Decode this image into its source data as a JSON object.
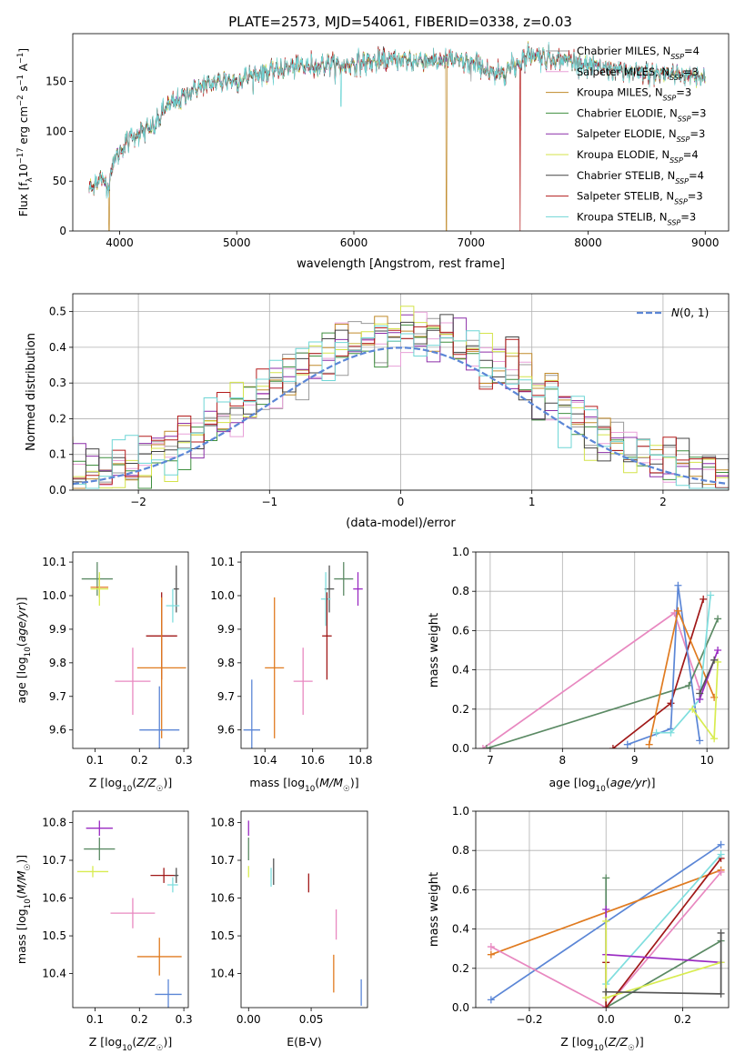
{
  "title": "PLATE=2573, MJD=54061, FIBERID=0338, z=0.03",
  "colors": {
    "Chabrier MILES": "#999999",
    "Salpeter MILES": "#e8a0d8",
    "Kroupa MILES": "#c08a2a",
    "Chabrier ELODIE": "#3f8f3f",
    "Salpeter ELODIE": "#8c2fa8",
    "Kroupa ELODIE": "#d4e34a",
    "Chabrier STELIB": "#444444",
    "Salpeter STELIB": "#b31b1b",
    "Kroupa STELIB": "#6fd6d6",
    "ssp_blue": "#5b86d6",
    "ssp_orange": "#e07b20",
    "ssp_green": "#5b8a64",
    "ssp_purple": "#9a2bc2",
    "ssp_pink": "#e888c0",
    "ssp_yellow": "#d8ec50",
    "ssp_red": "#a01818",
    "ssp_cyan": "#7fdede",
    "ssp_darkgray": "#555555",
    "normal": "#5b86d6"
  },
  "chart_data": [
    {
      "id": "spectrum",
      "type": "line",
      "xlabel": "wavelength [Angstrom, rest frame]",
      "ylabel": "Flux [f_λ10^-17 erg cm^-2 s^-1 A^-1]",
      "xlim": [
        3600,
        9200
      ],
      "ylim": [
        0,
        198
      ],
      "xticks": [
        4000,
        5000,
        6000,
        7000,
        8000,
        9000
      ],
      "yticks": [
        0,
        50,
        100,
        150
      ],
      "legend_position": "upper-right",
      "legend": [
        {
          "label": "Chabrier MILES",
          "n": "4",
          "color_key": "Chabrier MILES"
        },
        {
          "label": "Salpeter MILES",
          "n": "3",
          "color_key": "Salpeter MILES"
        },
        {
          "label": "Kroupa MILES",
          "n": "3",
          "color_key": "Kroupa MILES"
        },
        {
          "label": "Chabrier ELODIE",
          "n": "3",
          "color_key": "Chabrier ELODIE"
        },
        {
          "label": "Salpeter ELODIE",
          "n": "3",
          "color_key": "Salpeter ELODIE"
        },
        {
          "label": "Kroupa ELODIE",
          "n": "4",
          "color_key": "Kroupa ELODIE"
        },
        {
          "label": "Chabrier STELIB",
          "n": "4",
          "color_key": "Chabrier STELIB"
        },
        {
          "label": "Salpeter STELIB",
          "n": "3",
          "color_key": "Salpeter STELIB"
        },
        {
          "label": "Kroupa STELIB",
          "n": "3",
          "color_key": "Kroupa STELIB"
        }
      ],
      "continuum": [
        [
          3740,
          40
        ],
        [
          3800,
          50
        ],
        [
          3850,
          52
        ],
        [
          3900,
          45
        ],
        [
          3950,
          70
        ],
        [
          4000,
          80
        ],
        [
          4100,
          95
        ],
        [
          4200,
          100
        ],
        [
          4300,
          105
        ],
        [
          4400,
          125
        ],
        [
          4500,
          130
        ],
        [
          4600,
          140
        ],
        [
          4700,
          145
        ],
        [
          4800,
          148
        ],
        [
          4900,
          152
        ],
        [
          5000,
          150
        ],
        [
          5100,
          155
        ],
        [
          5200,
          158
        ],
        [
          5300,
          160
        ],
        [
          5400,
          163
        ],
        [
          5500,
          165
        ],
        [
          5600,
          165
        ],
        [
          5700,
          166
        ],
        [
          5800,
          168
        ],
        [
          5900,
          165
        ],
        [
          6000,
          168
        ],
        [
          6200,
          170
        ],
        [
          6400,
          172
        ],
        [
          6500,
          170
        ],
        [
          6600,
          172
        ],
        [
          6700,
          170
        ],
        [
          6800,
          172
        ],
        [
          6900,
          170
        ],
        [
          7000,
          168
        ],
        [
          7100,
          165
        ],
        [
          7200,
          155
        ],
        [
          7300,
          162
        ],
        [
          7400,
          168
        ],
        [
          7500,
          178
        ],
        [
          7600,
          175
        ],
        [
          7700,
          173
        ],
        [
          7800,
          172
        ],
        [
          7900,
          170
        ],
        [
          8000,
          165
        ],
        [
          8200,
          162
        ],
        [
          8400,
          158
        ],
        [
          8600,
          158
        ],
        [
          8800,
          157
        ],
        [
          9000,
          155
        ]
      ],
      "dips": [
        {
          "series": "Kroupa MILES",
          "x": 3910,
          "y": 0
        },
        {
          "series": "Kroupa MILES",
          "x": 6790,
          "y": 0
        },
        {
          "series": "Salpeter STELIB",
          "x": 7420,
          "y": 0
        },
        {
          "series": "Kroupa STELIB",
          "x": 5890,
          "y": 125
        },
        {
          "series": "Chabrier MILES",
          "x": 7000,
          "y": 150
        }
      ]
    },
    {
      "id": "residuals",
      "type": "histogram",
      "xlabel": "(data-model)/error",
      "ylabel": "Normed distribution",
      "xlim": [
        -2.5,
        2.5
      ],
      "ylim": [
        0,
        0.55
      ],
      "xticks": [
        -2,
        -1,
        0,
        1,
        2
      ],
      "yticks": [
        0.0,
        0.1,
        0.2,
        0.3,
        0.4,
        0.5
      ],
      "legend": [
        {
          "label": "N(0,1)",
          "color_key": "normal"
        }
      ],
      "bin_width": 0.1,
      "series": [
        "Chabrier MILES",
        "Salpeter MILES",
        "Kroupa MILES",
        "Chabrier ELODIE",
        "Salpeter ELODIE",
        "Kroupa ELODIE",
        "Chabrier STELIB",
        "Salpeter STELIB",
        "Kroupa STELIB"
      ]
    },
    {
      "id": "age_vs_Z",
      "type": "errorbar",
      "xlabel": "Z [log10(Z/Z☉)]",
      "ylabel": "age  [log10(age/yr)]",
      "xlim": [
        0.05,
        0.31
      ],
      "ylim": [
        9.545,
        10.13
      ],
      "xticks": [
        0.1,
        0.2,
        0.3
      ],
      "yticks": [
        9.6,
        9.7,
        9.8,
        9.9,
        10.0,
        10.1
      ],
      "points": [
        {
          "c": "ssp_green",
          "x": 0.105,
          "xe": 0.035,
          "y": 10.05,
          "ye": 0.05
        },
        {
          "c": "ssp_orange",
          "x": 0.11,
          "xe": 0.02,
          "y": 10.025,
          "ye": 0.03
        },
        {
          "c": "ssp_yellow",
          "x": 0.11,
          "xe": 0.02,
          "y": 10.02,
          "ye": 0.05
        },
        {
          "c": "ssp_darkgray",
          "x": 0.283,
          "xe": 0.006,
          "y": 10.02,
          "ye": 0.07
        },
        {
          "c": "ssp_cyan",
          "x": 0.275,
          "xe": 0.015,
          "y": 9.97,
          "ye": 0.05
        },
        {
          "c": "ssp_red",
          "x": 0.25,
          "xe": 0.035,
          "y": 9.88,
          "ye": 0.13
        },
        {
          "c": "ssp_orange",
          "x": 0.25,
          "xe": 0.055,
          "y": 9.785,
          "ye": 0.21
        },
        {
          "c": "ssp_pink",
          "x": 0.185,
          "xe": 0.04,
          "y": 9.745,
          "ye": 0.1
        },
        {
          "c": "ssp_blue",
          "x": 0.245,
          "xe": 0.045,
          "y": 9.6,
          "ye": 0.13
        }
      ]
    },
    {
      "id": "age_vs_mass",
      "type": "errorbar",
      "xlabel": "mass [log10(M/M☉)]",
      "ylabel": "",
      "xlim": [
        10.3,
        10.83
      ],
      "ylim": [
        9.545,
        10.13
      ],
      "xticks": [
        10.4,
        10.6,
        10.8
      ],
      "yticks": [
        9.6,
        9.7,
        9.8,
        9.9,
        10.0,
        10.1
      ],
      "points": [
        {
          "c": "ssp_green",
          "x": 10.73,
          "xe": 0.04,
          "y": 10.05,
          "ye": 0.05
        },
        {
          "c": "ssp_purple",
          "x": 10.79,
          "xe": 0.02,
          "y": 10.02,
          "ye": 0.05
        },
        {
          "c": "ssp_darkgray",
          "x": 10.67,
          "xe": 0.02,
          "y": 10.02,
          "ye": 0.07
        },
        {
          "c": "ssp_cyan",
          "x": 10.655,
          "xe": 0.02,
          "y": 9.99,
          "ye": 0.08
        },
        {
          "c": "ssp_red",
          "x": 10.66,
          "xe": 0.02,
          "y": 9.88,
          "ye": 0.13
        },
        {
          "c": "ssp_orange",
          "x": 10.44,
          "xe": 0.04,
          "y": 9.785,
          "ye": 0.21
        },
        {
          "c": "ssp_pink",
          "x": 10.56,
          "xe": 0.04,
          "y": 9.745,
          "ye": 0.1
        },
        {
          "c": "ssp_blue",
          "x": 10.345,
          "xe": 0.035,
          "y": 9.6,
          "ye": 0.15
        }
      ]
    },
    {
      "id": "massweight_vs_age",
      "type": "line",
      "xlabel": "age  [log10(age/yr)]",
      "ylabel": "mass weight",
      "xlim": [
        6.8,
        10.3
      ],
      "ylim": [
        0,
        1
      ],
      "xticks": [
        7,
        8,
        9,
        10
      ],
      "yticks": [
        0.0,
        0.2,
        0.4,
        0.6,
        0.8,
        1.0
      ],
      "series": [
        {
          "c": "ssp_pink",
          "points": [
            [
              6.9,
              0.0
            ],
            [
              9.55,
              0.69
            ],
            [
              9.9,
              0.3
            ]
          ]
        },
        {
          "c": "ssp_green",
          "points": [
            [
              6.95,
              0.0
            ],
            [
              9.75,
              0.32
            ],
            [
              10.15,
              0.66
            ]
          ]
        },
        {
          "c": "ssp_red",
          "points": [
            [
              8.7,
              0.0
            ],
            [
              9.5,
              0.23
            ],
            [
              9.95,
              0.76
            ]
          ]
        },
        {
          "c": "ssp_blue",
          "points": [
            [
              8.9,
              0.02
            ],
            [
              9.5,
              0.1
            ],
            [
              9.6,
              0.83
            ],
            [
              9.9,
              0.04
            ]
          ]
        },
        {
          "c": "ssp_orange",
          "points": [
            [
              9.2,
              0.02
            ],
            [
              9.6,
              0.7
            ],
            [
              10.1,
              0.26
            ]
          ]
        },
        {
          "c": "ssp_cyan",
          "points": [
            [
              9.3,
              0.08
            ],
            [
              9.5,
              0.08
            ],
            [
              9.9,
              0.25
            ],
            [
              10.05,
              0.78
            ]
          ]
        },
        {
          "c": "ssp_yellow",
          "points": [
            [
              9.8,
              0.2
            ],
            [
              10.1,
              0.05
            ],
            [
              10.15,
              0.44
            ]
          ]
        },
        {
          "c": "ssp_purple",
          "points": [
            [
              9.9,
              0.25
            ],
            [
              10.15,
              0.5
            ]
          ]
        },
        {
          "c": "ssp_darkgray",
          "points": [
            [
              9.9,
              0.28
            ],
            [
              10.1,
              0.45
            ]
          ]
        }
      ]
    },
    {
      "id": "mass_vs_Z",
      "type": "errorbar",
      "xlabel": "Z [log10(Z/Z☉)]",
      "ylabel": "mass [log10(M/M☉)]",
      "xlim": [
        0.05,
        0.31
      ],
      "ylim": [
        10.31,
        10.83
      ],
      "xticks": [
        0.1,
        0.2,
        0.3
      ],
      "yticks": [
        10.4,
        10.5,
        10.6,
        10.7,
        10.8
      ],
      "points": [
        {
          "c": "ssp_purple",
          "x": 0.11,
          "xe": 0.03,
          "y": 10.785,
          "ye": 0.02
        },
        {
          "c": "ssp_green",
          "x": 0.11,
          "xe": 0.035,
          "y": 10.73,
          "ye": 0.03
        },
        {
          "c": "ssp_yellow",
          "x": 0.095,
          "xe": 0.035,
          "y": 10.67,
          "ye": 0.015
        },
        {
          "c": "ssp_red",
          "x": 0.255,
          "xe": 0.03,
          "y": 10.66,
          "ye": 0.02
        },
        {
          "c": "ssp_darkgray",
          "x": 0.283,
          "xe": 0.005,
          "y": 10.66,
          "ye": 0.02
        },
        {
          "c": "ssp_cyan",
          "x": 0.275,
          "xe": 0.012,
          "y": 10.635,
          "ye": 0.02
        },
        {
          "c": "ssp_pink",
          "x": 0.185,
          "xe": 0.05,
          "y": 10.56,
          "ye": 0.04
        },
        {
          "c": "ssp_orange",
          "x": 0.245,
          "xe": 0.05,
          "y": 10.445,
          "ye": 0.05
        },
        {
          "c": "ssp_blue",
          "x": 0.265,
          "xe": 0.03,
          "y": 10.345,
          "ye": 0.04
        }
      ]
    },
    {
      "id": "mass_vs_ebv",
      "type": "errorbar",
      "xlabel": "E(B-V)",
      "ylabel": "",
      "xlim": [
        -0.006,
        0.095
      ],
      "ylim": [
        10.31,
        10.83
      ],
      "xticks": [
        0.0,
        0.05
      ],
      "yticks": [
        10.4,
        10.5,
        10.6,
        10.7,
        10.8
      ],
      "points": [
        {
          "c": "ssp_purple",
          "x": 0.0,
          "xe": 0.0,
          "y": 10.785,
          "ye": 0.02
        },
        {
          "c": "ssp_green",
          "x": 0.0,
          "xe": 0.0,
          "y": 10.73,
          "ye": 0.03
        },
        {
          "c": "ssp_yellow",
          "x": 0.0,
          "xe": 0.0,
          "y": 10.67,
          "ye": 0.015
        },
        {
          "c": "ssp_darkgray",
          "x": 0.02,
          "xe": 0.0,
          "y": 10.67,
          "ye": 0.035
        },
        {
          "c": "ssp_cyan",
          "x": 0.018,
          "xe": 0.0,
          "y": 10.655,
          "ye": 0.025
        },
        {
          "c": "ssp_red",
          "x": 0.048,
          "xe": 0.0,
          "y": 10.64,
          "ye": 0.025
        },
        {
          "c": "ssp_pink",
          "x": 0.07,
          "xe": 0.0,
          "y": 10.53,
          "ye": 0.04
        },
        {
          "c": "ssp_orange",
          "x": 0.068,
          "xe": 0.0,
          "y": 10.4,
          "ye": 0.05
        },
        {
          "c": "ssp_blue",
          "x": 0.09,
          "xe": 0.0,
          "y": 10.35,
          "ye": 0.035
        }
      ]
    },
    {
      "id": "massweight_vs_Z",
      "type": "line",
      "xlabel": "Z [log10(Z/Z☉)]",
      "ylabel": "mass weight",
      "xlim": [
        -0.34,
        0.32
      ],
      "ylim": [
        0,
        1
      ],
      "xticks": [
        -0.2,
        0.0,
        0.2
      ],
      "yticks": [
        0.0,
        0.2,
        0.4,
        0.6,
        0.8,
        1.0
      ],
      "series": [
        {
          "c": "ssp_blue",
          "points": [
            [
              -0.3,
              0.04
            ],
            [
              0.3,
              0.83
            ]
          ]
        },
        {
          "c": "ssp_orange",
          "points": [
            [
              -0.3,
              0.27
            ],
            [
              0.3,
              0.7
            ]
          ]
        },
        {
          "c": "ssp_pink",
          "points": [
            [
              -0.3,
              0.31
            ],
            [
              0.0,
              0.0
            ],
            [
              0.3,
              0.69
            ]
          ]
        },
        {
          "c": "ssp_green",
          "points": [
            [
              0.0,
              0.66
            ],
            [
              0.0,
              0.0
            ],
            [
              0.3,
              0.34
            ]
          ]
        },
        {
          "c": "ssp_red",
          "points": [
            [
              0.0,
              0.23
            ],
            [
              0.0,
              0.0
            ],
            [
              0.3,
              0.76
            ]
          ]
        },
        {
          "c": "ssp_cyan",
          "points": [
            [
              0.0,
              0.12
            ],
            [
              0.3,
              0.78
            ]
          ]
        },
        {
          "c": "ssp_purple",
          "points": [
            [
              0.0,
              0.5
            ],
            [
              0.0,
              0.27
            ],
            [
              0.3,
              0.23
            ]
          ]
        },
        {
          "c": "ssp_yellow",
          "points": [
            [
              0.0,
              0.44
            ],
            [
              0.0,
              0.05
            ],
            [
              0.3,
              0.23
            ]
          ]
        },
        {
          "c": "ssp_darkgray",
          "points": [
            [
              0.0,
              0.08
            ],
            [
              0.3,
              0.07
            ],
            [
              0.3,
              0.38
            ]
          ]
        }
      ]
    }
  ]
}
